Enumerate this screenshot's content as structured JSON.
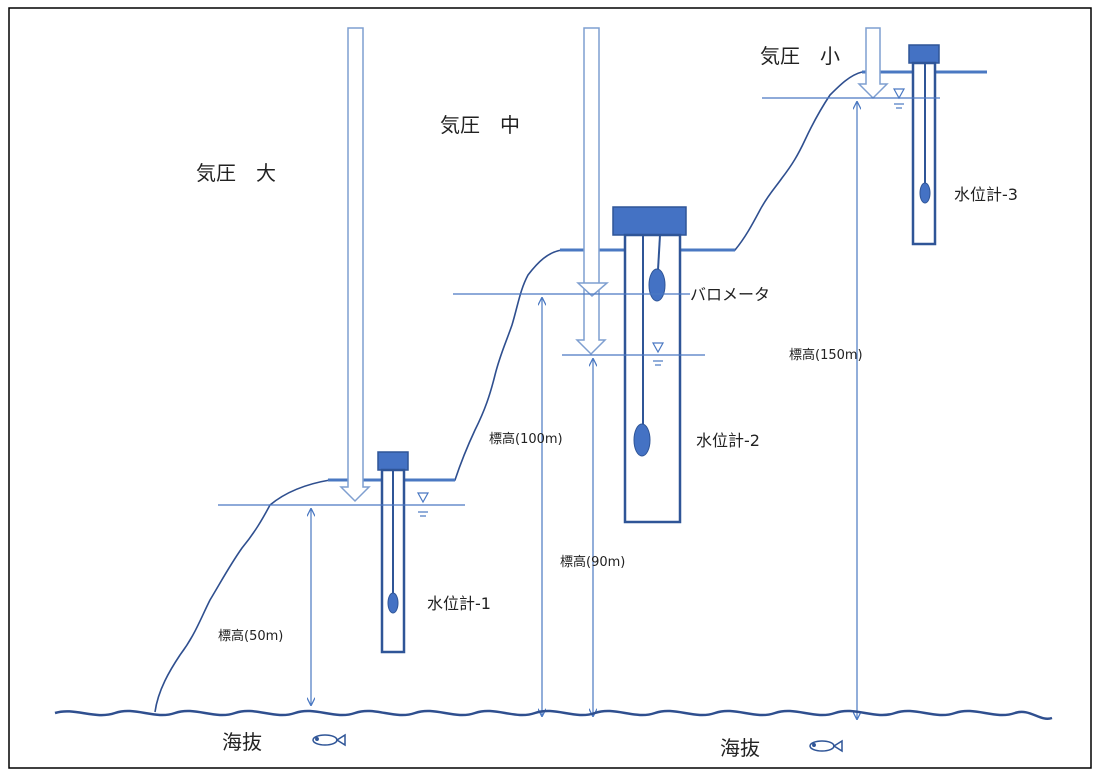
{
  "pressure_labels": {
    "large": "気圧　大",
    "medium": "気圧　中",
    "small": "気圧　小"
  },
  "instrument_labels": {
    "gauge1": "水位計-1",
    "gauge2": "水位計-2",
    "gauge3": "水位計-3",
    "barometer": "バロメータ"
  },
  "elevation_labels": {
    "e50": "標高(50m)",
    "e100": "標高(100m)",
    "e90": "標高(90m)",
    "e150": "標高(150m)"
  },
  "sea_labels": {
    "left": "海抜",
    "right": "海抜"
  },
  "colors": {
    "well": "#2f5597",
    "cap": "#4472c4",
    "line": "#4a78c2",
    "ground": "#4a78c2",
    "sea": "#2f5597",
    "arrow": "#7f9fd0"
  }
}
